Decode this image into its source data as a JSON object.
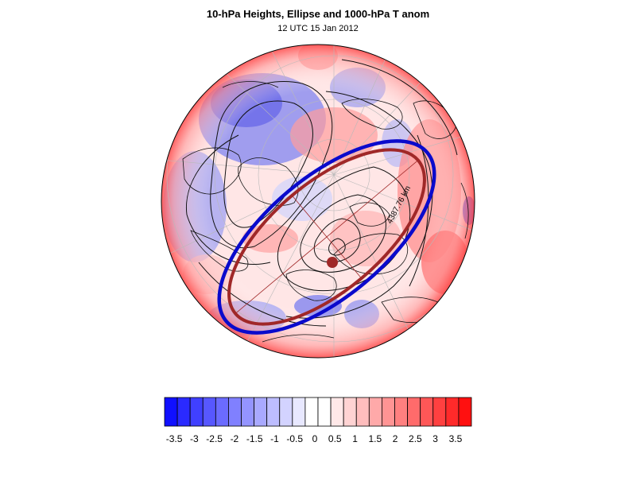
{
  "header": {
    "title": "10-hPa Heights, Ellipse and 1000-hPa T anom",
    "subtitle": "12 UTC 15 Jan 2012"
  },
  "map": {
    "projection": "north polar stereographic",
    "ellipse_label": "4387.76 km",
    "colors": {
      "ellipse_outer": "#0a0acc",
      "ellipse_inner": "#a02828",
      "centroid": "#a02828",
      "contour": "#111111",
      "coast": "#111111"
    }
  },
  "colorbar": {
    "labels": [
      "-3.5",
      "-3",
      "-2.5",
      "-2",
      "-1.5",
      "-1",
      "-0.5",
      "0",
      "0.5",
      "1",
      "1.5",
      "2",
      "2.5",
      "3",
      "3.5"
    ],
    "colors": [
      "#1010ff",
      "#2a2aff",
      "#4040ff",
      "#5757ff",
      "#6b6bff",
      "#8080ff",
      "#9494ff",
      "#a9a9ff",
      "#bdbdff",
      "#d3d3ff",
      "#e8e8ff",
      "#ffffff",
      "#ffffff",
      "#ffe8e8",
      "#ffd3d3",
      "#ffbdbd",
      "#ffa9a9",
      "#ff9494",
      "#ff8080",
      "#ff6b6b",
      "#ff5757",
      "#ff4040",
      "#ff2a2a",
      "#ff1010"
    ]
  }
}
